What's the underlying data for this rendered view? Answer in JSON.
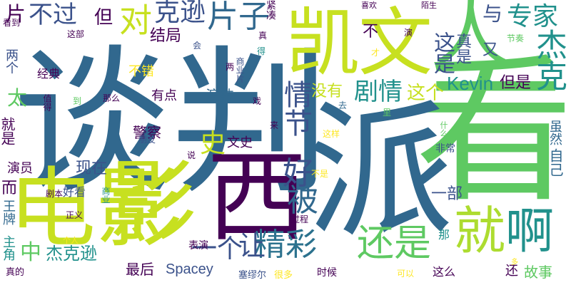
{
  "word_cloud": {
    "background": "#ffffff",
    "palette": [
      "#440154",
      "#3b528b",
      "#21918c",
      "#5ec962",
      "#fde725"
    ],
    "words": [
      {
        "text": "谈判",
        "color": "#31688e"
      },
      {
        "text": "看",
        "color": "#5ec962"
      },
      {
        "text": "派",
        "color": "#31688e"
      },
      {
        "text": "西",
        "color": "#440154"
      },
      {
        "text": "电影",
        "color": "#c7e020"
      },
      {
        "text": "影",
        "color": "#c7e020"
      },
      {
        "text": "凯",
        "color": "#c7e020"
      },
      {
        "text": "文",
        "color": "#c7e020"
      },
      {
        "text": "人",
        "color": "#5ec962"
      },
      {
        "text": "就",
        "color": "#addc30"
      },
      {
        "text": "啊",
        "color": "#21918c"
      },
      {
        "text": "还是",
        "color": "#5ec962"
      },
      {
        "text": "精彩",
        "color": "#2c728e"
      },
      {
        "text": "片子",
        "color": "#31688e"
      },
      {
        "text": "对",
        "color": "#c7e020"
      },
      {
        "text": "克逊",
        "color": "#3b528b"
      },
      {
        "text": "不过",
        "color": "#3b528b"
      },
      {
        "text": "片",
        "color": "#440154"
      },
      {
        "text": "专家",
        "color": "#21918c"
      },
      {
        "text": "杰克",
        "color": "#21918c"
      },
      {
        "text": "与",
        "color": "#3b528b"
      },
      {
        "text": "这是",
        "color": "#3b528b"
      },
      {
        "text": "真是",
        "color": "#3b528b"
      },
      {
        "text": "又",
        "color": "#3b528b"
      },
      {
        "text": "Kevin",
        "color": "#21918c"
      },
      {
        "text": "但是",
        "color": "#440154"
      },
      {
        "text": "这个",
        "color": "#c7e020"
      },
      {
        "text": "没有",
        "color": "#c7e020"
      },
      {
        "text": "剧情",
        "color": "#21918c"
      },
      {
        "text": "情节",
        "color": "#3b528b"
      },
      {
        "text": "好",
        "color": "#3b528b"
      },
      {
        "text": "被",
        "color": "#31688e"
      },
      {
        "text": "史",
        "color": "#c7e020"
      },
      {
        "text": "文史",
        "color": "#440154"
      },
      {
        "text": "警察",
        "color": "#440154"
      },
      {
        "text": "有点",
        "color": "#440154"
      },
      {
        "text": "演技",
        "color": "#31688e"
      },
      {
        "text": "结局",
        "color": "#440154"
      },
      {
        "text": "但",
        "color": "#440154"
      },
      {
        "text": "不错",
        "color": "#fde725"
      },
      {
        "text": "现在",
        "color": "#3b528b"
      },
      {
        "text": "一个",
        "color": "#3b528b"
      },
      {
        "text": "让",
        "color": "#3b528b"
      },
      {
        "text": "中",
        "color": "#5ec962"
      },
      {
        "text": "杰克逊",
        "color": "#21918c"
      },
      {
        "text": "最后",
        "color": "#440154"
      },
      {
        "text": "Spacey",
        "color": "#3b528b"
      },
      {
        "text": "一部",
        "color": "#3b528b"
      },
      {
        "text": "自己",
        "color": "#31688e"
      },
      {
        "text": "虽然",
        "color": "#31688e"
      },
      {
        "text": "故事",
        "color": "#5ec962"
      },
      {
        "text": "还",
        "color": "#440154"
      },
      {
        "text": "这么",
        "color": "#440154"
      },
      {
        "text": "可以",
        "color": "#fde725"
      },
      {
        "text": "非常",
        "color": "#3b528b"
      },
      {
        "text": "就是",
        "color": "#440154"
      },
      {
        "text": "太",
        "color": "#5ec962"
      },
      {
        "text": "演员",
        "color": "#440154"
      },
      {
        "text": "王牌",
        "color": "#31688e"
      },
      {
        "text": "主角",
        "color": "#21918c"
      },
      {
        "text": "而",
        "color": "#440154"
      },
      {
        "text": "剧本",
        "color": "#440154"
      },
      {
        "text": "好看",
        "color": "#3b528b"
      },
      {
        "text": "商业",
        "color": "#21918c"
      },
      {
        "text": "正义",
        "color": "#440154"
      },
      {
        "text": "个人",
        "color": "#fde725"
      },
      {
        "text": "表演",
        "color": "#440154"
      },
      {
        "text": "塞缪尔",
        "color": "#3b528b"
      },
      {
        "text": "很多",
        "color": "#fde725"
      },
      {
        "text": "时候",
        "color": "#440154"
      },
      {
        "text": "真的",
        "color": "#440154"
      },
      {
        "text": "过程",
        "color": "#440154"
      },
      {
        "text": "那",
        "color": "#21918c"
      },
      {
        "text": "不是",
        "color": "#fde725"
      },
      {
        "text": "那么",
        "color": "#440154"
      },
      {
        "text": "经典",
        "color": "#440154"
      },
      {
        "text": "两个",
        "color": "#3b528b"
      },
      {
        "text": "看到",
        "color": "#440154"
      },
      {
        "text": "这部",
        "color": "#440154"
      },
      {
        "text": "到",
        "color": "#5ec962"
      },
      {
        "text": "值得",
        "color": "#440154"
      },
      {
        "text": "朋友",
        "color": "#3b528b"
      },
      {
        "text": "说",
        "color": "#440154"
      },
      {
        "text": "会",
        "color": "#3b528b"
      },
      {
        "text": "两",
        "color": "#440154"
      },
      {
        "text": "商业片",
        "color": "#3b528b"
      },
      {
        "text": "戏",
        "color": "#440154"
      },
      {
        "text": "来",
        "color": "#440154"
      },
      {
        "text": "这样",
        "color": "#fde725"
      },
      {
        "text": "什么",
        "color": "#5ec962"
      },
      {
        "text": "里",
        "color": "#5ec962"
      },
      {
        "text": "去",
        "color": "#31688e"
      },
      {
        "text": "喜欢",
        "color": "#440154"
      },
      {
        "text": "陌生",
        "color": "#440154"
      },
      {
        "text": "真",
        "color": "#440154"
      },
      {
        "text": "得",
        "color": "#21918c"
      },
      {
        "text": "演",
        "color": "#440154"
      },
      {
        "text": "才",
        "color": "#fde725"
      },
      {
        "text": "节奏",
        "color": "#5ec962"
      },
      {
        "text": "紧凑",
        "color": "#440154"
      },
      {
        "text": "多",
        "color": "#fde725"
      },
      {
        "text": "不",
        "color": "#440154"
      }
    ]
  }
}
